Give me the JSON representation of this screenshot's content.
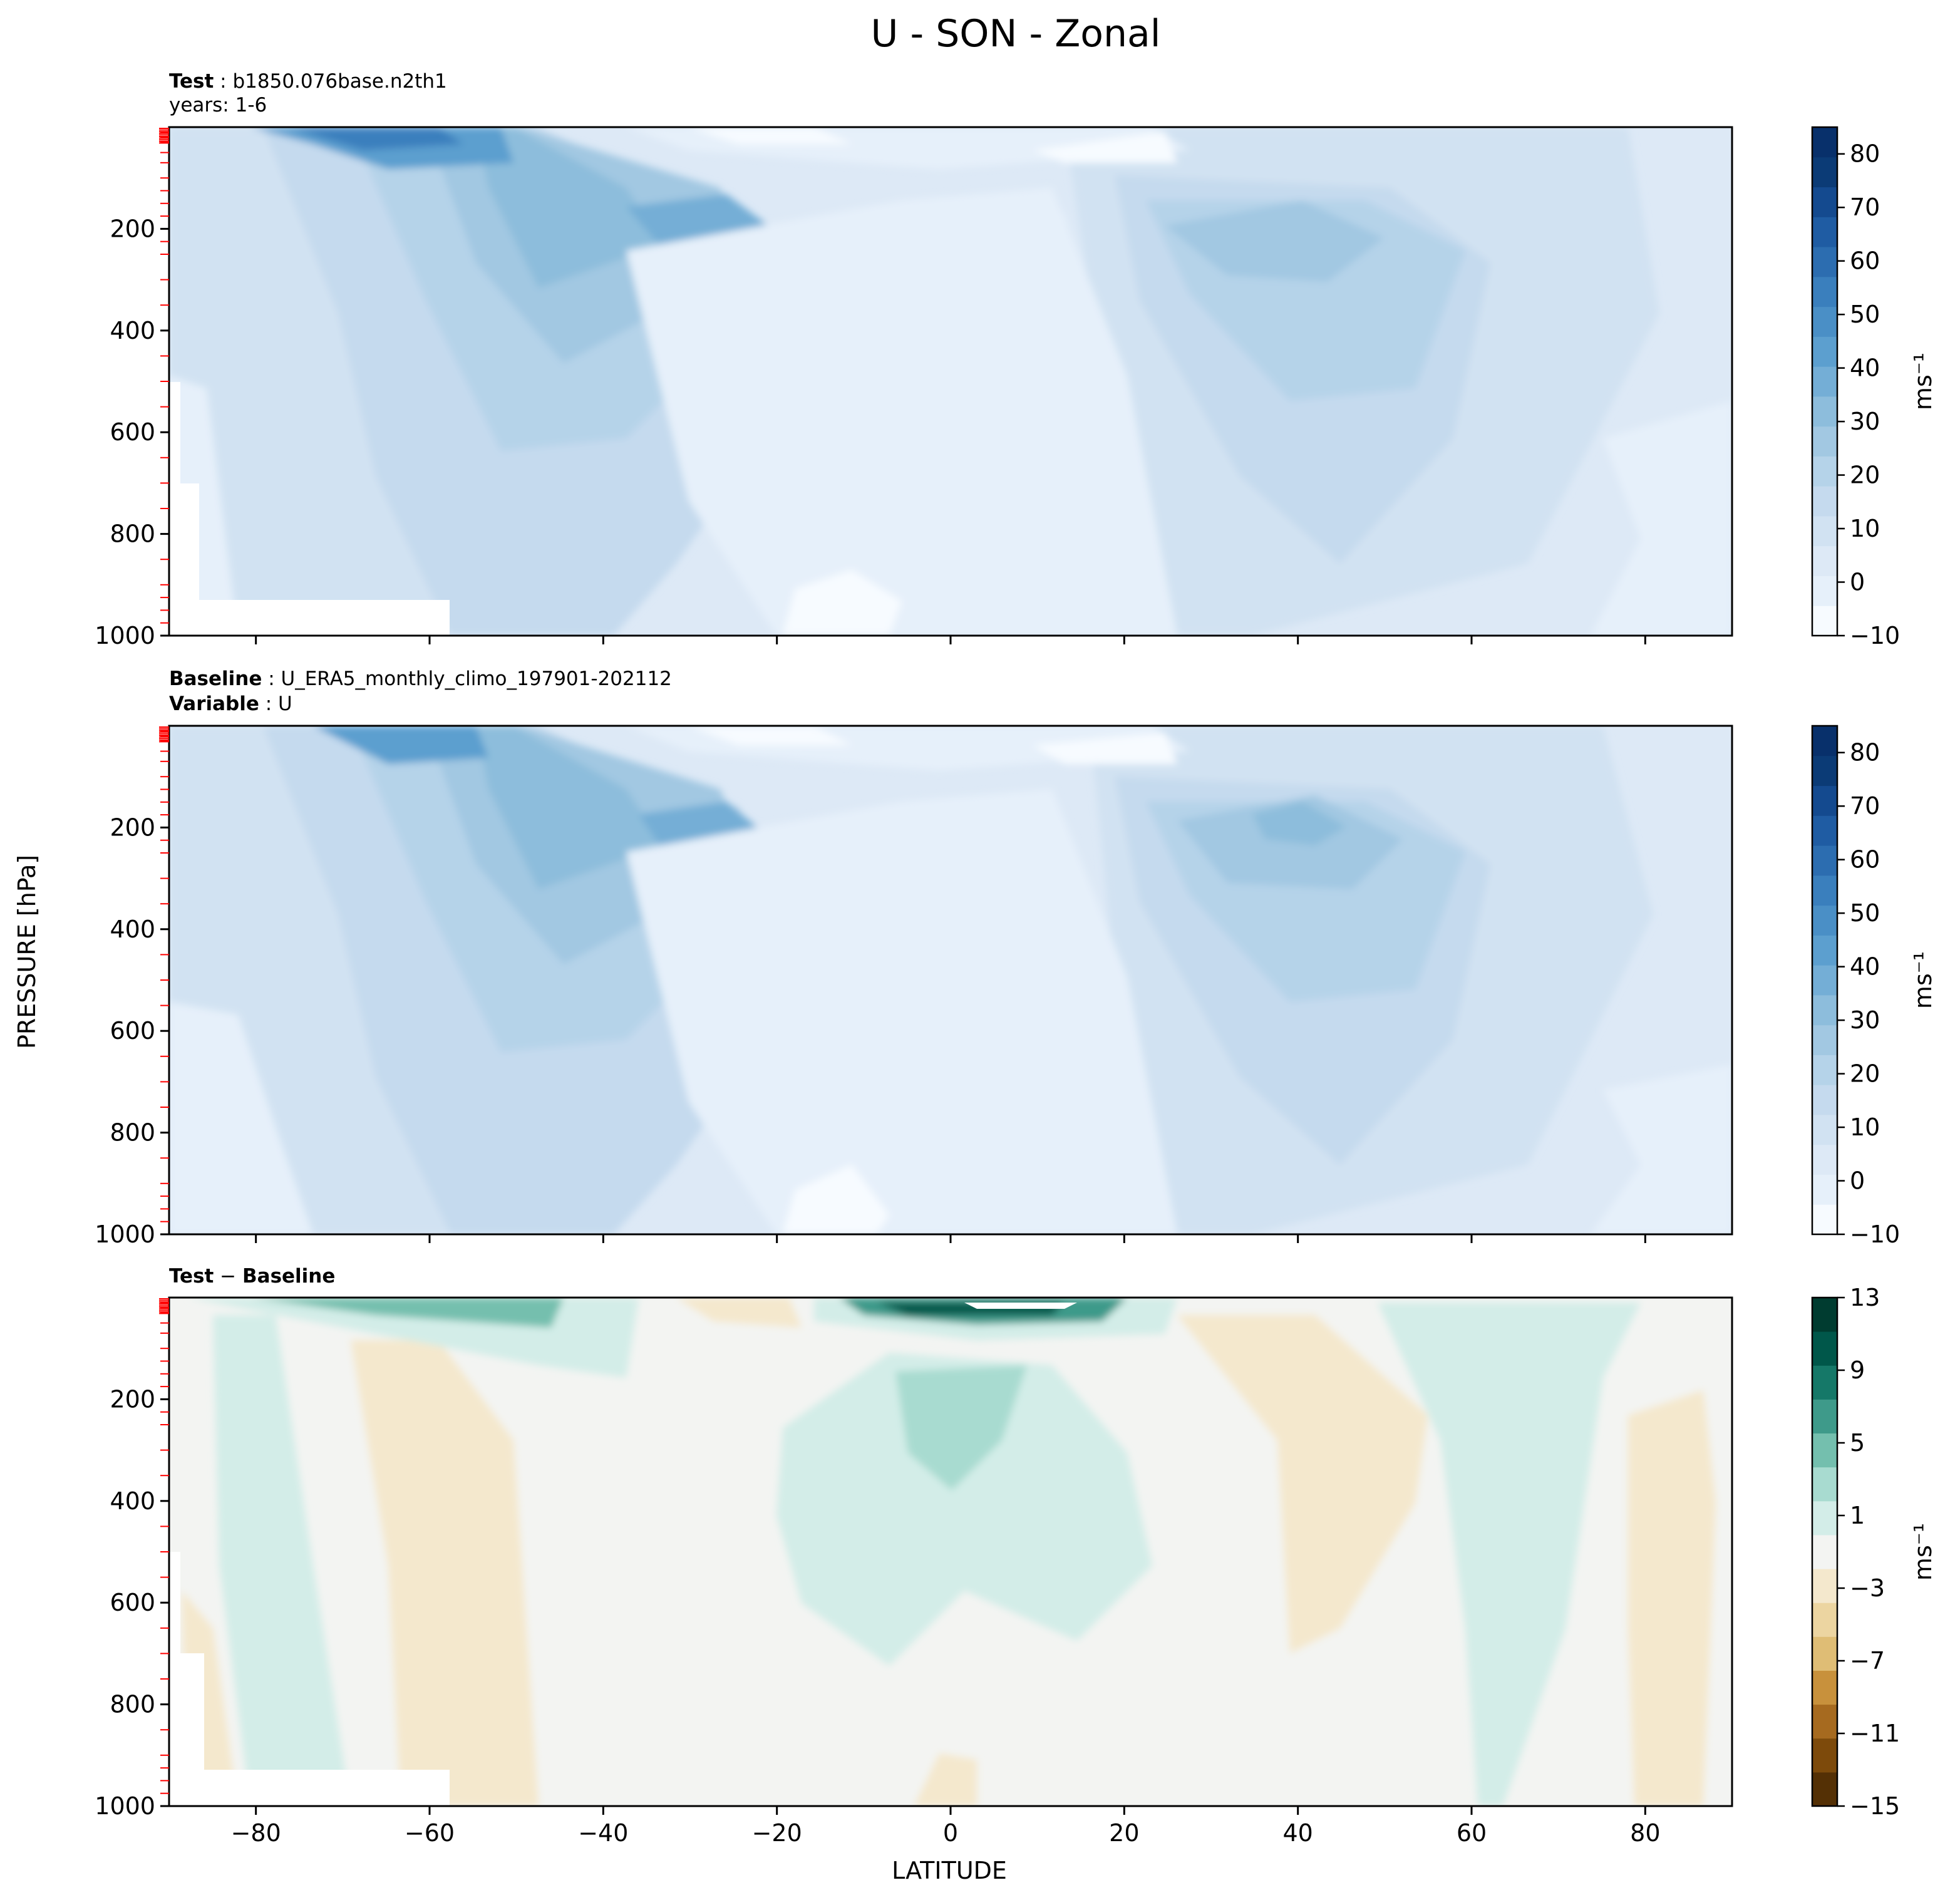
{
  "figure": {
    "title": "U - SON - Zonal",
    "ylabel": "PRESSURE [hPa]",
    "xlabel": "LATITUDE",
    "xticks": [
      -80,
      -60,
      -40,
      -20,
      0,
      20,
      40,
      60,
      80
    ],
    "yticks": [
      200,
      400,
      600,
      800,
      1000
    ]
  },
  "panels": {
    "test": {
      "label_bold": "Test",
      "label_rest": " : b1850.076base.n2th1",
      "line2": "years: 1-6"
    },
    "baseline": {
      "label_bold": "Baseline",
      "label_rest": " : U_ERA5_monthly_climo_197901-202112",
      "line2_bold": "Variable",
      "line2_rest": " : U"
    },
    "diff": {
      "label_bold": "Test",
      "label_mid": " − ",
      "label_bold2": "Baseline"
    }
  },
  "colorbars": {
    "abs": {
      "unit": "ms⁻¹",
      "tick_labels": [
        "80",
        "70",
        "60",
        "50",
        "40",
        "30",
        "20",
        "10",
        "0",
        "−10"
      ],
      "colors": [
        "#f7fbff",
        "#e6f0fa",
        "#dde9f6",
        "#d1e2f2",
        "#c5daee",
        "#b5d3e9",
        "#a2c8e2",
        "#8dbddc",
        "#74aed6",
        "#5c9fcf",
        "#4a8fc6",
        "#3a7fbd",
        "#2c6db0",
        "#1f5ca3",
        "#144a8f",
        "#0b3b76",
        "#08306b"
      ]
    },
    "diff": {
      "unit": "ms⁻¹",
      "tick_labels": [
        "13",
        "9",
        "5",
        "1",
        "−3",
        "−7",
        "−11",
        "−15"
      ],
      "colors": [
        "#543005",
        "#7d4a0b",
        "#a66a1f",
        "#c8913c",
        "#dfbd75",
        "#ecd5a1",
        "#f4e8cd",
        "#f3f4f2",
        "#d3ede8",
        "#a8dbd0",
        "#74bfae",
        "#3e9a8a",
        "#157868",
        "#00574a",
        "#003c30"
      ]
    }
  },
  "chart_data": [
    {
      "type": "heatmap",
      "panel": "Test",
      "subtitle": "b1850.076base.n2th1 years: 1-6",
      "xlim": [
        -90,
        90
      ],
      "ylim": [
        1000,
        0
      ],
      "colorbar_range": [
        -10,
        85
      ],
      "features": [
        {
          "feature": "southern stratospheric jet core",
          "lat": -62,
          "pressure": 15,
          "value": 60
        },
        {
          "feature": "southern subtropical jet core",
          "lat": -30,
          "pressure": 200,
          "value": 40
        },
        {
          "feature": "northern subtropical jet core",
          "lat": 40,
          "pressure": 200,
          "value": 30
        },
        {
          "feature": "tropical easterly minimum",
          "lat": 0,
          "pressure": 600,
          "value": 0
        }
      ]
    },
    {
      "type": "heatmap",
      "panel": "Baseline",
      "subtitle": "U_ERA5_monthly_climo_197901-202112 Variable: U",
      "xlim": [
        -90,
        90
      ],
      "ylim": [
        1000,
        0
      ],
      "colorbar_range": [
        -10,
        85
      ],
      "features": [
        {
          "feature": "southern stratospheric jet core",
          "lat": -60,
          "pressure": 20,
          "value": 50
        },
        {
          "feature": "southern subtropical jet core",
          "lat": -28,
          "pressure": 200,
          "value": 40
        },
        {
          "feature": "northern subtropical jet core",
          "lat": 40,
          "pressure": 200,
          "value": 35
        },
        {
          "feature": "tropical easterly minimum",
          "lat": 0,
          "pressure": 600,
          "value": 0
        }
      ]
    },
    {
      "type": "heatmap",
      "panel": "Test − Baseline",
      "xlim": [
        -90,
        90
      ],
      "ylim": [
        1000,
        0
      ],
      "colorbar_range": [
        -15,
        13
      ],
      "features": [
        {
          "feature": "upper-level positive bias over equator",
          "lat": 0,
          "pressure": 15,
          "value": 11
        },
        {
          "feature": "tropical positive bias",
          "lat": 0,
          "pressure": 250,
          "value": 4
        },
        {
          "feature": "southern midlatitude negative bias",
          "lat": -50,
          "pressure": 400,
          "value": -1
        },
        {
          "feature": "northern midlatitude negative bias",
          "lat": 45,
          "pressure": 400,
          "value": -1
        }
      ]
    }
  ]
}
